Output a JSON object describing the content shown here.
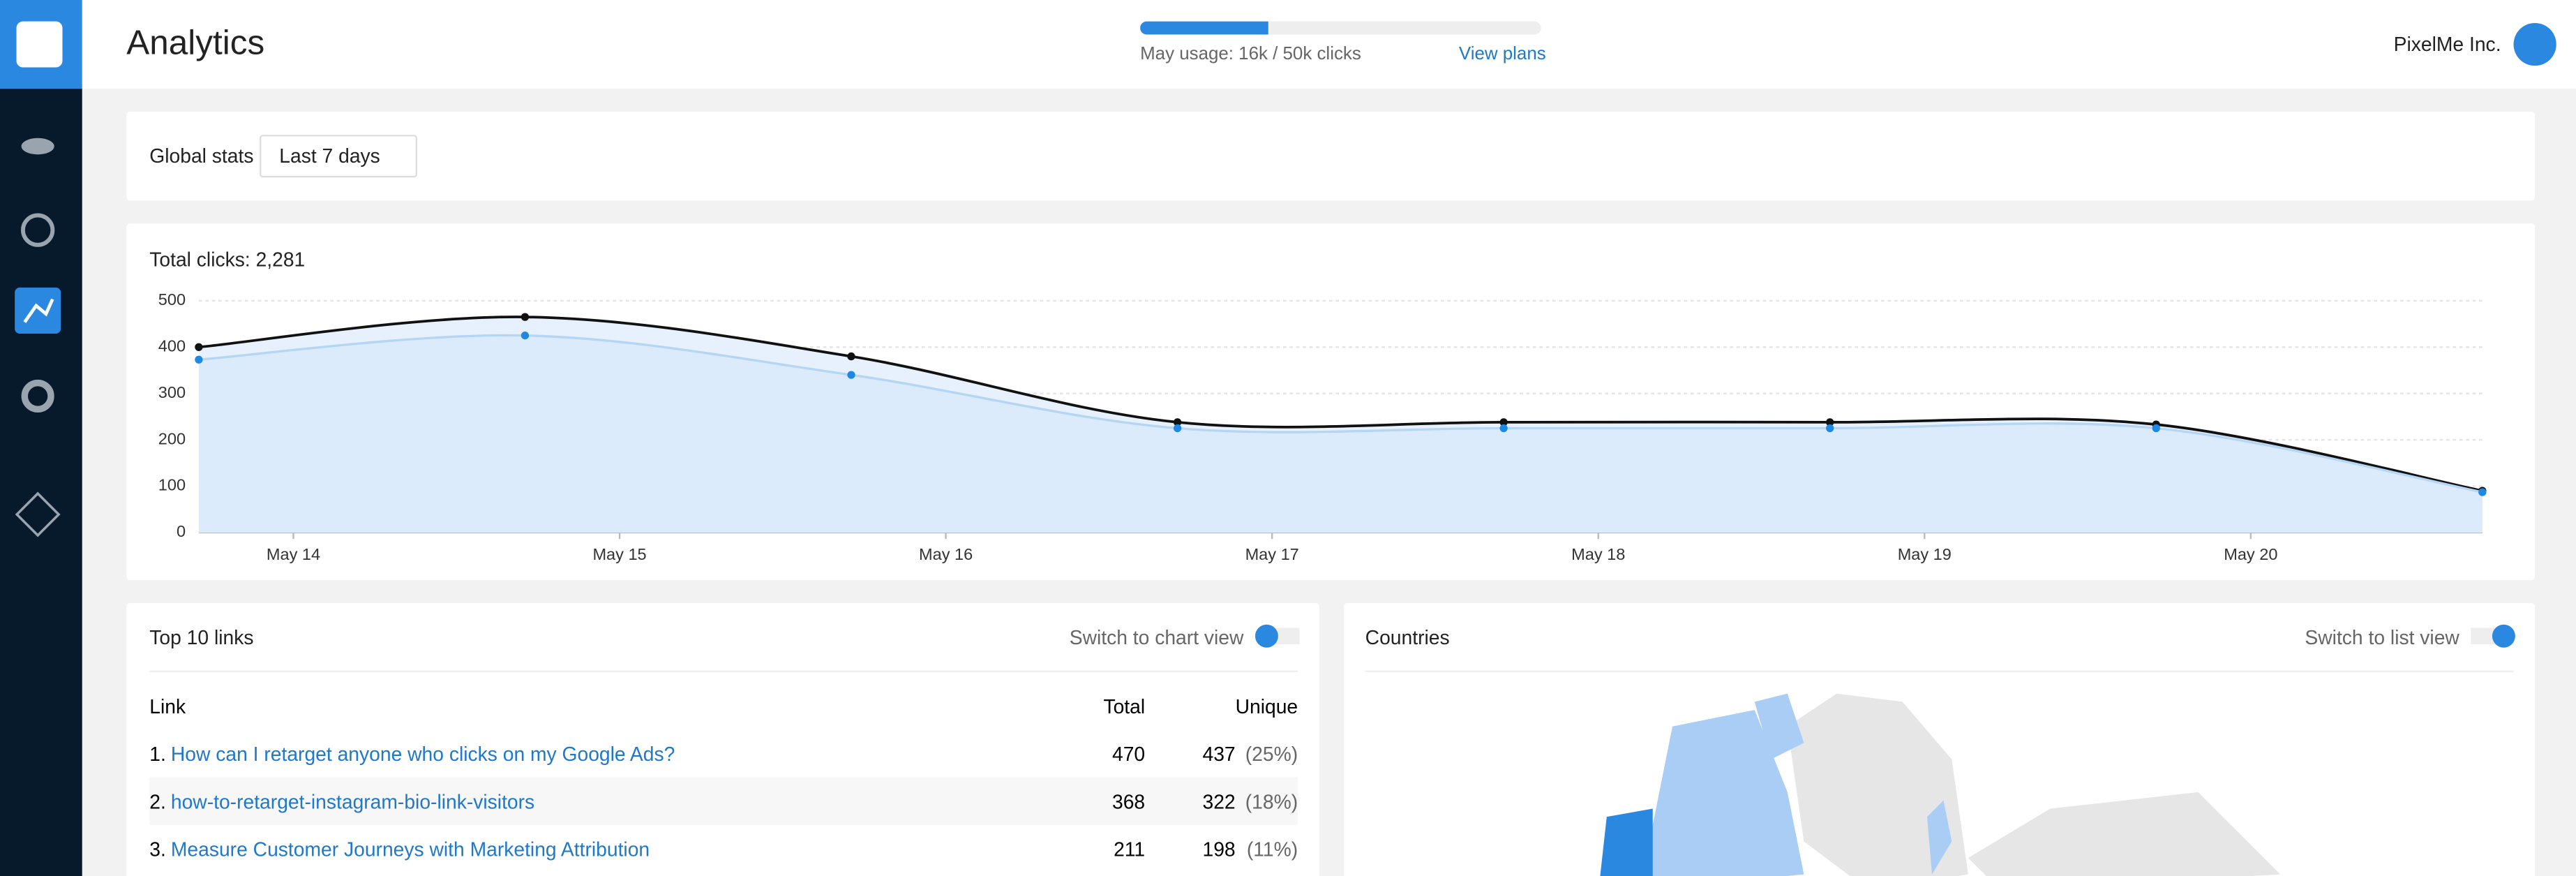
{
  "header": {
    "title": "Analytics",
    "usage": {
      "label": "May usage: 16k / 50k clicks",
      "used": 16,
      "limit": 50
    },
    "view_plans": "View plans",
    "account": "PixelMe Inc."
  },
  "global_stats": {
    "label": "Global stats",
    "range": "Last 7 days"
  },
  "chart_data": {
    "type": "line",
    "title": "Total clicks: 2,281",
    "x": [
      13.71,
      14.71,
      15.71,
      16.71,
      17.71,
      18.71,
      19.71,
      20.71
    ],
    "series": [
      {
        "color": "#111111",
        "values": [
          400,
          465,
          380,
          238,
          238,
          238,
          233,
          90
        ]
      },
      {
        "color": "#1e88e5",
        "values": [
          373,
          425,
          340,
          225,
          225,
          225,
          225,
          87
        ]
      }
    ],
    "xlim": [
      13.71,
      20.71
    ],
    "xticks": [
      {
        "value": 14,
        "label": "May 14"
      },
      {
        "value": 15,
        "label": "May 15"
      },
      {
        "value": 16,
        "label": "May 16"
      },
      {
        "value": 17,
        "label": "May 17"
      },
      {
        "value": 18,
        "label": "May 18"
      },
      {
        "value": 19,
        "label": "May 19"
      },
      {
        "value": 20,
        "label": "May 20"
      }
    ],
    "ylim": [
      0,
      500
    ],
    "yticks": [
      0,
      100,
      200,
      300,
      400,
      500
    ],
    "grid": true
  },
  "top_links": {
    "title": "Top 10 links",
    "toggle": "Switch to chart view",
    "columns": [
      "Link",
      "Total",
      "Unique"
    ],
    "rows": [
      {
        "rank": "1.",
        "link": "How can I retarget anyone who clicks on my Google Ads?",
        "total": 470,
        "unique": 437,
        "share": "(25%)"
      },
      {
        "rank": "2.",
        "link": "how-to-retarget-instagram-bio-link-visitors",
        "total": 368,
        "unique": 322,
        "share": "(18%)"
      },
      {
        "rank": "3.",
        "link": "Measure Customer Journeys with Marketing Attribution",
        "total": 211,
        "unique": 198,
        "share": "(11%)"
      }
    ]
  },
  "countries": {
    "title": "Countries",
    "toggle": "Switch to list view"
  }
}
